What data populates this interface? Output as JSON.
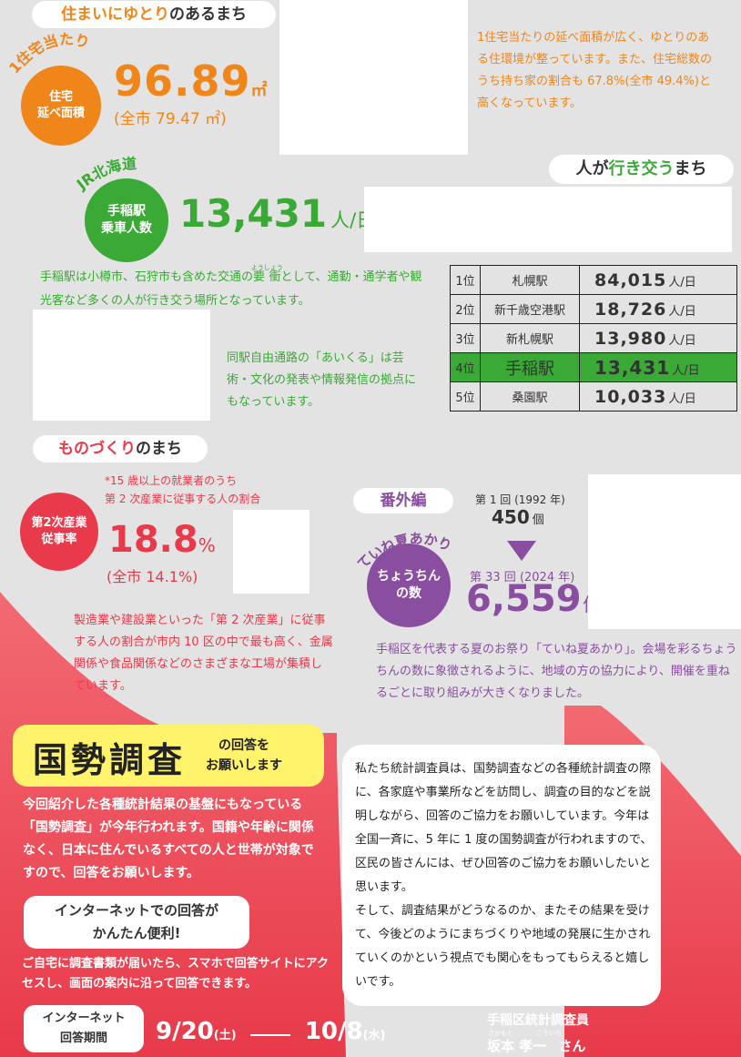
{
  "colors": {
    "orange": "#f08519",
    "green": "#3aa935",
    "red": "#e83a4a",
    "purple": "#8a4ea0",
    "yellow": "#fff36b"
  },
  "sec1": {
    "title_hl": "住まいにゆとり",
    "title_rest": "のあるまち",
    "arc": "1住宅当たり",
    "circle": [
      "住宅",
      "延べ面積"
    ],
    "value": "96.89",
    "unit": "㎡",
    "sub": "(全市 79.47 ㎡)",
    "desc": "1住宅当たりの延べ面積が広く、ゆとりのある住環境が整っています。また、住宅総数のうち持ち家の割合も 67.8%(全市 49.4%)と高くなっています。"
  },
  "sec2": {
    "title_hl": "人が",
    "title_mid": "行き交う",
    "title_rest": "まち",
    "arc": "JR北海道",
    "circle": [
      "手稲駅",
      "乗車人数"
    ],
    "value": "13,431",
    "unit": "人/日",
    "desc1_pre": "手稲駅は小樽市、石狩市も含めた交通の",
    "ruby_base": "要衝",
    "ruby_text": "ようしょう",
    "desc1_post": "として、通勤・通学者や観光客など多くの人が行き交う場所となっています。",
    "desc2": "同駅自由通路の「あいくる」は芸術・文化の発表や情報発信の拠点にもなっています。",
    "ranking": [
      {
        "pos": "1位",
        "station": "札幌駅",
        "riders": "84,015",
        "unit": "人/日"
      },
      {
        "pos": "2位",
        "station": "新千歳空港駅",
        "riders": "18,726",
        "unit": "人/日"
      },
      {
        "pos": "3位",
        "station": "新札幌駅",
        "riders": "13,980",
        "unit": "人/日"
      },
      {
        "pos": "4位",
        "station": "手稲駅",
        "riders": "13,431",
        "unit": "人/日"
      },
      {
        "pos": "5位",
        "station": "桑園駅",
        "riders": "10,033",
        "unit": "人/日"
      }
    ]
  },
  "sec3": {
    "title_hl": "ものづくり",
    "title_rest": "のまち",
    "note1": "*15 歳以上の就業者のうち",
    "note2": "第 2 次産業に従事する人の割合",
    "circle": [
      "第2次産業",
      "従事率"
    ],
    "value": "18.8",
    "unit": "%",
    "sub": "(全市 14.1%)",
    "desc": "製造業や建設業といった「第 2 次産業」に従事する人の割合が市内 10 区の中で最も高く、金属関係や食品関係などのさまざまな工場が集積しています。"
  },
  "sec4": {
    "badge": "番外編",
    "arc": "ていね夏あかり",
    "circle": [
      "ちょうちん",
      "の数"
    ],
    "first_label": "第 1 回 (1992 年)",
    "first_value": "450",
    "first_unit": "個",
    "latest_label": "第 33 回 (2024 年)",
    "latest_value": "6,559",
    "latest_unit": "個",
    "desc": "手稲区を代表する夏のお祭り「ていね夏あかり」。会場を彩るちょうちんの数に象徴されるように、地域の方の協力により、開催を重ねるごとに取り組みが大きくなりました。"
  },
  "census": {
    "title": "国勢調査",
    "title_sub1": "の回答を",
    "title_sub2": "お願いします",
    "body": "今回紹介した各種統計結果の基盤にもなっている「国勢調査」が今年行われます。国籍や年齢に関係なく、日本に住んでいるすべての人と世帯が対象ですので、回答をお願いします。",
    "net_title1": "インターネットでの回答が",
    "net_title2": "かんたん便利!",
    "net_body": "ご自宅に調査書類が届いたら、スマホで回答サイトにアクセスし、画面の案内に沿って回答できます。",
    "period_label1": "インターネット",
    "period_label2": "回答期間",
    "period_start": "9/20",
    "period_start_day": "(土)",
    "period_end": "10/8",
    "period_end_day": "(水)",
    "message": "私たち統計調査員は、国勢調査などの各種統計調査の際に、各家庭や事業所などを訪問し、調査の目的などを説明しながら、回答のご協力をお願いしています。今年は全国一斉に、5 年に 1 度の国勢調査が行われますので、区民の皆さんには、ぜひ回答のご協力をお願いしたいと思います。\nそして、調査結果がどうなるのか、またその結果を受けて、今後どのようにまちづくりや地域の発展に生かされていくのかという視点でも関心をもってもらえると嬉しいです。",
    "sign_title": "手稲区統計調査員",
    "sign_name": "坂本 孝一",
    "sign_ruby_family": "さかもと",
    "sign_ruby_given": "こういち",
    "sign_suffix": "さん"
  }
}
